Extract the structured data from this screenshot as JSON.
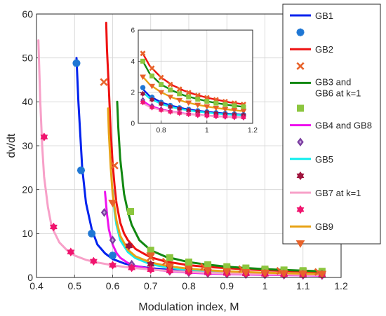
{
  "chart_data": {
    "type": "line",
    "title": "",
    "xlabel": "Modulation index, M",
    "ylabel": "dv/dt",
    "xlim": [
      0.4,
      1.2
    ],
    "ylim": [
      0,
      60
    ],
    "xticks": [
      "0.4",
      "0.5",
      "0.6",
      "0.7",
      "0.8",
      "0.9",
      "1",
      "1.1",
      "1.2"
    ],
    "yticks": [
      "0",
      "10",
      "20",
      "30",
      "40",
      "50",
      "60"
    ],
    "grid": true,
    "legend_position": "right",
    "legend": [
      {
        "label": "GB1",
        "kind": "line",
        "color": "#0022ee"
      },
      {
        "label": "",
        "kind": "marker",
        "marker": "asterisk",
        "color": "#1f77d4"
      },
      {
        "label": "GB2",
        "kind": "line",
        "color": "#ee1111"
      },
      {
        "label": "",
        "kind": "marker",
        "marker": "x",
        "color": "#e8622a"
      },
      {
        "label": "GB3 and",
        "label2": "GB6 at k=1",
        "kind": "line",
        "color": "#118811"
      },
      {
        "label": "",
        "kind": "marker",
        "marker": "square",
        "color": "#8cc63f"
      },
      {
        "label": "GB4 and GB8",
        "kind": "line",
        "color": "#ee11ee"
      },
      {
        "label": "",
        "kind": "marker",
        "marker": "diamond",
        "color": "#7b3fa0"
      },
      {
        "label": "GB5",
        "kind": "line",
        "color": "#11eeee"
      },
      {
        "label": "",
        "kind": "marker",
        "marker": "hexagram",
        "color": "#a0153e"
      },
      {
        "label": "GB7 at k=1",
        "kind": "line",
        "color": "#f7a0c8"
      },
      {
        "label": "",
        "kind": "marker",
        "marker": "hexagram",
        "color": "#f0146e"
      },
      {
        "label": "GB9",
        "kind": "line",
        "color": "#e8a317"
      },
      {
        "label": "",
        "kind": "marker",
        "marker": "triangle-down",
        "color": "#e8622a"
      }
    ],
    "series": [
      {
        "name": "GB1",
        "color": "#0022ee",
        "x": [
          0.505,
          0.51,
          0.52,
          0.53,
          0.545,
          0.56,
          0.58,
          0.6,
          0.63,
          0.66,
          0.7,
          0.75,
          0.8,
          0.85,
          0.9,
          0.95,
          1.0,
          1.05,
          1.1,
          1.15
        ],
        "y": [
          50,
          40,
          25,
          17,
          11,
          7.5,
          5.5,
          4.2,
          3.2,
          2.6,
          2.1,
          1.7,
          1.4,
          1.2,
          1.05,
          0.92,
          0.82,
          0.74,
          0.67,
          0.6
        ]
      },
      {
        "name": "GB2",
        "color": "#ee1111",
        "x": [
          0.583,
          0.585,
          0.59,
          0.595,
          0.6,
          0.605,
          0.61,
          0.62,
          0.63,
          0.64,
          0.66,
          0.68,
          0.7,
          0.74,
          0.8,
          0.85,
          0.9,
          0.95,
          1.0,
          1.05,
          1.1,
          1.15
        ],
        "y": [
          58,
          52,
          43,
          33,
          26,
          21,
          17,
          12.5,
          10,
          8.5,
          6.5,
          5.5,
          4.6,
          3.6,
          2.8,
          2.4,
          2.1,
          1.85,
          1.65,
          1.5,
          1.35,
          1.25
        ]
      },
      {
        "name": "GB3 and GB6 at k=1",
        "color": "#118811",
        "x": [
          0.612,
          0.615,
          0.62,
          0.63,
          0.64,
          0.65,
          0.67,
          0.7,
          0.74,
          0.8,
          0.85,
          0.9,
          0.95,
          1.0,
          1.05,
          1.1,
          1.15
        ],
        "y": [
          40,
          34,
          27,
          19,
          15,
          12,
          8.5,
          6.2,
          4.7,
          3.5,
          2.9,
          2.45,
          2.15,
          1.9,
          1.7,
          1.55,
          1.4
        ]
      },
      {
        "name": "GB4 and GB8",
        "color": "#ee11ee",
        "x": [
          0.58,
          0.585,
          0.59,
          0.6,
          0.61,
          0.62,
          0.64,
          0.66,
          0.7,
          0.75,
          0.8,
          0.85,
          0.9,
          0.95,
          1.0,
          1.05,
          1.1,
          1.15
        ],
        "y": [
          19.5,
          14.5,
          11,
          7.5,
          5.6,
          4.5,
          3.3,
          2.6,
          1.9,
          1.4,
          1.1,
          0.9,
          0.78,
          0.68,
          0.6,
          0.54,
          0.49,
          0.45
        ]
      },
      {
        "name": "GB5",
        "color": "#11eeee",
        "x": [
          0.6,
          0.605,
          0.61,
          0.62,
          0.64,
          0.66,
          0.7,
          0.75,
          0.8,
          0.85,
          0.9,
          0.95,
          1.0,
          1.05,
          1.1,
          1.15
        ],
        "y": [
          20,
          15,
          12,
          8.5,
          5.8,
          4.4,
          3.0,
          2.2,
          1.7,
          1.4,
          1.2,
          1.05,
          0.93,
          0.84,
          0.76,
          0.7
        ]
      },
      {
        "name": "GB7 at k=1",
        "color": "#f7a0c8",
        "x": [
          0.405,
          0.41,
          0.415,
          0.42,
          0.43,
          0.44,
          0.46,
          0.48,
          0.5,
          0.53,
          0.56,
          0.6,
          0.64,
          0.7,
          0.75,
          0.8,
          0.85,
          0.9,
          0.95,
          1.0,
          1.05,
          1.1,
          1.15
        ],
        "y": [
          54,
          40,
          30,
          23,
          16,
          11.5,
          8,
          6.2,
          5,
          4,
          3.4,
          2.8,
          2.3,
          1.8,
          1.5,
          1.25,
          1.05,
          0.92,
          0.82,
          0.73,
          0.66,
          0.6,
          0.55
        ]
      },
      {
        "name": "GB9",
        "color": "#e8a317",
        "x": [
          0.588,
          0.59,
          0.595,
          0.6,
          0.61,
          0.62,
          0.64,
          0.66,
          0.7,
          0.75,
          0.8,
          0.85,
          0.9,
          0.95,
          1.0,
          1.05,
          1.1,
          1.15
        ],
        "y": [
          38.5,
          33,
          25,
          19,
          13,
          9.5,
          6.3,
          4.8,
          3.4,
          2.5,
          2.0,
          1.65,
          1.4,
          1.22,
          1.08,
          0.97,
          0.88,
          0.8
        ]
      }
    ],
    "markers": [
      {
        "series": "GB1",
        "marker": "asterisk",
        "color": "#1f77d4",
        "x": [
          0.505,
          0.517,
          0.545,
          0.6
        ],
        "y": [
          48.8,
          24.4,
          10,
          5
        ]
      },
      {
        "series": "GB2",
        "marker": "x",
        "color": "#e8622a",
        "x": [
          0.577,
          0.605,
          0.7,
          0.74,
          0.8,
          0.84,
          0.9,
          0.94,
          1.0,
          1.04,
          1.1,
          1.14
        ],
        "y": [
          44.5,
          25.5,
          4.6,
          3.6,
          2.8,
          2.45,
          2.1,
          1.9,
          1.65,
          1.5,
          1.35,
          1.25
        ]
      },
      {
        "series": "GB3 and GB6 at k=1",
        "marker": "square",
        "color": "#8cc63f",
        "x": [
          0.647,
          0.7,
          0.75,
          0.8,
          0.85,
          0.9,
          0.95,
          1.0,
          1.05,
          1.1,
          1.15
        ],
        "y": [
          15,
          6.2,
          4.5,
          3.5,
          2.9,
          2.45,
          2.15,
          1.9,
          1.7,
          1.55,
          1.4
        ]
      },
      {
        "series": "GB4 and GB8",
        "marker": "diamond",
        "color": "#7b3fa0",
        "x": [
          0.578,
          0.6,
          0.65,
          0.7,
          0.75,
          0.8,
          0.85,
          0.9,
          0.95,
          1.0,
          1.05,
          1.1,
          1.15
        ],
        "y": [
          14.8,
          8.5,
          3.0,
          1.9,
          1.4,
          1.1,
          0.9,
          0.78,
          0.68,
          0.6,
          0.54,
          0.49,
          0.45
        ]
      },
      {
        "series": "GB5",
        "marker": "hexagram",
        "color": "#a0153e",
        "x": [
          0.643,
          0.7,
          0.75,
          0.8,
          0.85,
          0.9,
          0.95,
          1.0,
          1.05,
          1.1,
          1.15
        ],
        "y": [
          7.2,
          3.0,
          2.2,
          1.7,
          1.4,
          1.2,
          1.05,
          0.93,
          0.84,
          0.76,
          0.7
        ]
      },
      {
        "series": "GB7 at k=1",
        "marker": "hexagram",
        "color": "#f0146e",
        "x": [
          0.42,
          0.445,
          0.49,
          0.55,
          0.6,
          0.65,
          0.7,
          0.75,
          0.8,
          0.85,
          0.9,
          0.95,
          1.0,
          1.05,
          1.1,
          1.15
        ],
        "y": [
          32,
          11.5,
          5.8,
          3.7,
          2.8,
          2.2,
          1.8,
          1.5,
          1.25,
          1.05,
          0.92,
          0.82,
          0.73,
          0.66,
          0.6,
          0.55
        ]
      },
      {
        "series": "GB9",
        "marker": "triangle-down",
        "color": "#e8622a",
        "x": [
          0.6,
          0.7,
          0.75,
          0.8,
          0.85,
          0.9,
          0.95,
          1.0,
          1.05,
          1.1,
          1.15
        ],
        "y": [
          17,
          5,
          2.5,
          2.0,
          1.65,
          1.4,
          1.22,
          1.08,
          0.97,
          0.88,
          0.8
        ]
      }
    ],
    "inset": {
      "xlim": [
        0.7,
        1.2
      ],
      "ylim": [
        0,
        6
      ],
      "xticks": [
        "0.8",
        "1",
        "1.2"
      ],
      "yticks": [
        "0",
        "2",
        "4",
        "6"
      ],
      "grid": true,
      "series": [
        {
          "name": "GB2",
          "color": "#ee1111",
          "x": [
            0.72,
            0.75,
            0.8,
            0.85,
            0.9,
            0.95,
            1.0,
            1.05,
            1.1,
            1.15
          ],
          "y": [
            4.5,
            3.7,
            2.95,
            2.45,
            2.1,
            1.85,
            1.65,
            1.5,
            1.35,
            1.25
          ]
        },
        {
          "name": "GB3 and GB6 at k=1",
          "color": "#118811",
          "x": [
            0.72,
            0.75,
            0.8,
            0.85,
            0.9,
            0.95,
            1.0,
            1.05,
            1.1,
            1.15
          ],
          "y": [
            4.0,
            3.2,
            2.5,
            2.1,
            1.8,
            1.6,
            1.42,
            1.28,
            1.17,
            1.08
          ]
        },
        {
          "name": "GB9",
          "color": "#e8a317",
          "x": [
            0.72,
            0.75,
            0.8,
            0.85,
            0.9,
            0.95,
            1.0,
            1.05,
            1.1,
            1.15
          ],
          "y": [
            3.0,
            2.5,
            2.0,
            1.65,
            1.4,
            1.22,
            1.08,
            0.97,
            0.88,
            0.8
          ]
        },
        {
          "name": "GB1",
          "color": "#0022ee",
          "x": [
            0.72,
            0.75,
            0.8,
            0.85,
            0.9,
            0.95,
            1.0,
            1.05,
            1.1,
            1.15
          ],
          "y": [
            2.2,
            1.75,
            1.35,
            1.12,
            0.95,
            0.83,
            0.74,
            0.67,
            0.61,
            0.56
          ]
        },
        {
          "name": "GB5",
          "color": "#11eeee",
          "x": [
            0.72,
            0.75,
            0.8,
            0.85,
            0.9,
            0.95,
            1.0,
            1.05,
            1.1,
            1.15
          ],
          "y": [
            2.0,
            1.6,
            1.25,
            1.03,
            0.88,
            0.77,
            0.69,
            0.62,
            0.57,
            0.52
          ]
        },
        {
          "name": "GB4 and GB8",
          "color": "#ee11ee",
          "x": [
            0.72,
            0.75,
            0.8,
            0.85,
            0.9,
            0.95,
            1.0,
            1.05,
            1.1,
            1.15
          ],
          "y": [
            1.45,
            1.15,
            0.9,
            0.75,
            0.64,
            0.56,
            0.5,
            0.45,
            0.41,
            0.38
          ]
        },
        {
          "name": "GB7 at k=1",
          "color": "#f7a0c8",
          "x": [
            0.72,
            0.75,
            0.8,
            0.85,
            0.9,
            0.95,
            1.0,
            1.05,
            1.1,
            1.15
          ],
          "y": [
            1.3,
            1.05,
            0.85,
            0.72,
            0.62,
            0.55,
            0.49,
            0.45,
            0.41,
            0.38
          ]
        }
      ],
      "markers": [
        {
          "series": "GB2",
          "marker": "x",
          "color": "#e8622a",
          "x": [
            0.72,
            0.76,
            0.8,
            0.84,
            0.88,
            0.92,
            0.96,
            1.0,
            1.04,
            1.08,
            1.12,
            1.16
          ],
          "y": [
            4.5,
            3.55,
            2.95,
            2.5,
            2.2,
            1.98,
            1.8,
            1.65,
            1.52,
            1.4,
            1.3,
            1.22
          ]
        },
        {
          "series": "GB3 and GB6 at k=1",
          "marker": "square",
          "color": "#8cc63f",
          "x": [
            0.72,
            0.76,
            0.8,
            0.84,
            0.88,
            0.92,
            0.96,
            1.0,
            1.04,
            1.08,
            1.12,
            1.16
          ],
          "y": [
            4.0,
            3.05,
            2.5,
            2.15,
            1.9,
            1.7,
            1.55,
            1.42,
            1.3,
            1.21,
            1.13,
            1.06
          ]
        },
        {
          "series": "GB9",
          "marker": "triangle-down",
          "color": "#e8622a",
          "x": [
            0.72,
            0.76,
            0.8,
            0.84,
            0.88,
            0.92,
            0.96,
            1.0,
            1.04,
            1.08,
            1.12,
            1.16
          ],
          "y": [
            3.0,
            2.4,
            2.0,
            1.7,
            1.5,
            1.33,
            1.19,
            1.08,
            0.99,
            0.91,
            0.85,
            0.79
          ]
        },
        {
          "series": "GB1",
          "marker": "asterisk",
          "color": "#1f77d4",
          "x": [
            0.72,
            0.76,
            0.8,
            0.84,
            0.88,
            0.92,
            0.96,
            1.0,
            1.04,
            1.08,
            1.12,
            1.16
          ],
          "y": [
            2.3,
            1.68,
            1.35,
            1.15,
            1.0,
            0.9,
            0.81,
            0.74,
            0.68,
            0.63,
            0.59,
            0.55
          ]
        },
        {
          "series": "GB5",
          "marker": "hexagram",
          "color": "#a0153e",
          "x": [
            0.72,
            0.76,
            0.8,
            0.84,
            0.88,
            0.92,
            0.96,
            1.0,
            1.04,
            1.08,
            1.12,
            1.16
          ],
          "y": [
            1.9,
            1.52,
            1.25,
            1.06,
            0.93,
            0.83,
            0.75,
            0.69,
            0.63,
            0.59,
            0.55,
            0.52
          ]
        },
        {
          "series": "GB4 and GB8",
          "marker": "diamond",
          "color": "#7b3fa0",
          "x": [
            0.72,
            0.76,
            0.8,
            0.84,
            0.88,
            0.92,
            0.96,
            1.0,
            1.04,
            1.08,
            1.12,
            1.16
          ],
          "y": [
            1.5,
            1.12,
            0.9,
            0.77,
            0.68,
            0.6,
            0.54,
            0.5,
            0.46,
            0.43,
            0.4,
            0.38
          ]
        },
        {
          "series": "GB7 at k=1",
          "marker": "hexagram",
          "color": "#f0146e",
          "x": [
            0.72,
            0.76,
            0.8,
            0.84,
            0.88,
            0.92,
            0.96,
            1.0,
            1.04,
            1.08,
            1.12,
            1.16
          ],
          "y": [
            1.35,
            1.02,
            0.85,
            0.74,
            0.66,
            0.59,
            0.53,
            0.49,
            0.46,
            0.43,
            0.4,
            0.38
          ]
        }
      ]
    }
  }
}
